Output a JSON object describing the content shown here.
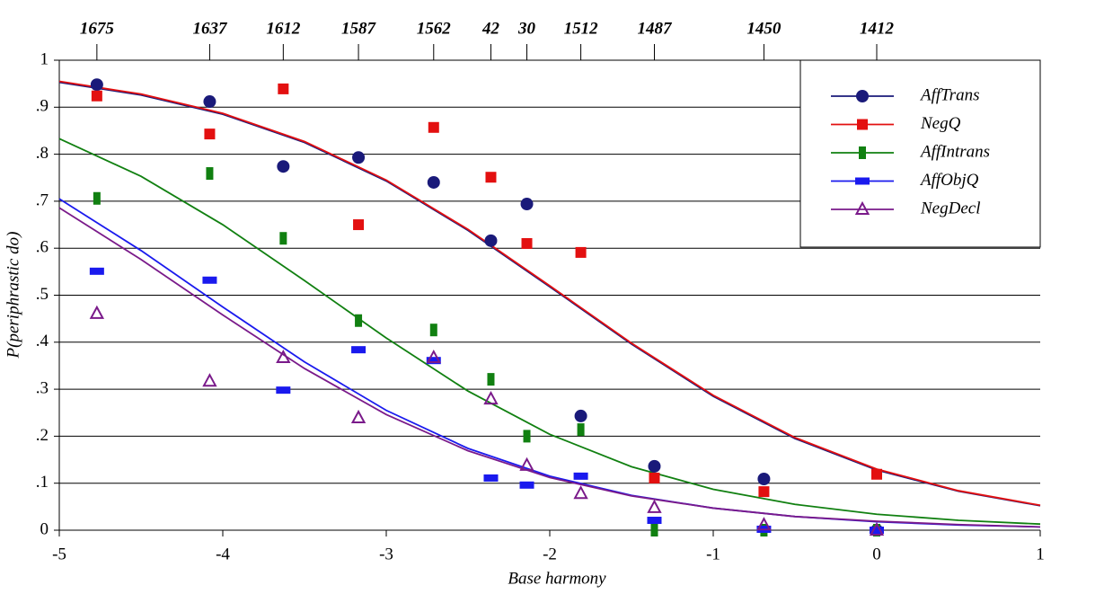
{
  "chart_data": {
    "type": "scatter",
    "x_label": "Base harmony",
    "y_label": "P(periphrastic do)",
    "x": [
      -4.77,
      -4.08,
      -3.63,
      -3.17,
      -2.71,
      -2.36,
      -2.14,
      -1.81,
      -1.36,
      -0.69,
      0
    ],
    "fit_x": [
      -5,
      -4.5,
      -4,
      -3.5,
      -3,
      -2.5,
      -2,
      -1.5,
      -1,
      -0.5,
      0,
      0.5,
      1
    ],
    "series": [
      {
        "name": "AffTrans",
        "color": "#1a1a7a",
        "marker": "circle",
        "values": [
          0.948,
          0.912,
          0.774,
          0.793,
          0.74,
          0.616,
          0.694,
          0.243,
          0.136,
          0.109,
          0
        ],
        "fit_values": [
          0.953,
          0.926,
          0.885,
          0.825,
          0.743,
          0.638,
          0.518,
          0.396,
          0.285,
          0.195,
          0.128,
          0.083,
          0.052
        ]
      },
      {
        "name": "NegQ",
        "color": "#e31010",
        "marker": "square",
        "values": [
          0.924,
          0.843,
          0.939,
          0.65,
          0.857,
          0.751,
          0.61,
          0.591,
          0.111,
          0.082,
          0.119
        ],
        "fit_values": [
          0.955,
          0.928,
          0.887,
          0.827,
          0.745,
          0.64,
          0.52,
          0.398,
          0.287,
          0.197,
          0.13,
          0.084,
          0.053
        ]
      },
      {
        "name": "AffIntrans",
        "color": "#118011",
        "marker": "vbar",
        "values": [
          0.706,
          0.759,
          0.621,
          0.446,
          0.426,
          0.321,
          0.2,
          0.214,
          0,
          0,
          0
        ],
        "fit_values": [
          0.833,
          0.753,
          0.65,
          0.531,
          0.409,
          0.296,
          0.204,
          0.135,
          0.087,
          0.055,
          0.034,
          0.021,
          0.013
        ]
      },
      {
        "name": "AffObjQ",
        "color": "#1a1aee",
        "marker": "hbar",
        "values": [
          0.551,
          0.532,
          0.298,
          0.384,
          0.361,
          0.111,
          0.096,
          0.115,
          0.021,
          0.002,
          0
        ],
        "fit_values": [
          0.705,
          0.595,
          0.475,
          0.358,
          0.255,
          0.174,
          0.115,
          0.074,
          0.047,
          0.029,
          0.018,
          0.011,
          0.007
        ]
      },
      {
        "name": "NegDecl",
        "color": "#7a1a8a",
        "marker": "triangle",
        "values": [
          0.461,
          0.317,
          0.367,
          0.239,
          0.367,
          0.279,
          0.138,
          0.078,
          0.048,
          0.011,
          0
        ],
        "fit_values": [
          0.686,
          0.576,
          0.458,
          0.344,
          0.246,
          0.169,
          0.112,
          0.073,
          0.047,
          0.029,
          0.019,
          0.012,
          0.007
        ]
      }
    ],
    "xlim": [
      -5,
      1
    ],
    "xticks": [
      -5,
      -4,
      -3,
      -2,
      -1,
      0,
      1
    ],
    "x2ticks": [
      {
        "value": -4.77,
        "label": "1675"
      },
      {
        "value": -4.08,
        "label": "1637"
      },
      {
        "value": -3.63,
        "label": "1612"
      },
      {
        "value": -3.17,
        "label": "1587"
      },
      {
        "value": -2.71,
        "label": "1562"
      },
      {
        "value": -2.36,
        "label": "42"
      },
      {
        "value": -2.14,
        "label": "30"
      },
      {
        "value": -1.81,
        "label": "1512"
      },
      {
        "value": -1.36,
        "label": "1487"
      },
      {
        "value": -0.69,
        "label": "1450"
      },
      {
        "value": 0,
        "label": "1412"
      }
    ],
    "ylim": [
      0,
      1
    ],
    "yticks": [
      0,
      {
        "value": 0.1,
        "label": ".1"
      },
      {
        "value": 0.2,
        "label": ".2"
      },
      {
        "value": 0.3,
        "label": ".3"
      },
      {
        "value": 0.4,
        "label": ".4"
      },
      {
        "value": 0.5,
        "label": ".5"
      },
      {
        "value": 0.6,
        "label": ".6"
      },
      {
        "value": 0.7,
        "label": ".7"
      },
      {
        "value": 0.8,
        "label": ".8"
      },
      {
        "value": 0.9,
        "label": ".9"
      },
      1
    ],
    "grid": true,
    "legend": "upper right"
  }
}
